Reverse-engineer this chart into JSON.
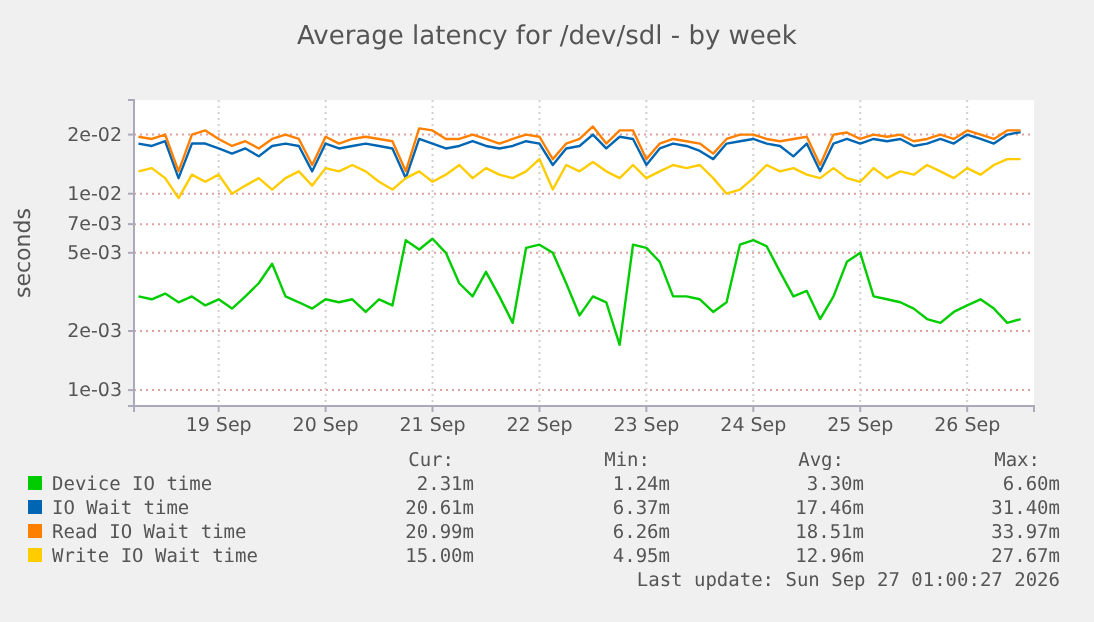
{
  "chart_data": {
    "type": "line",
    "title": "Average latency for /dev/sdl - by week",
    "ylabel": "seconds",
    "log": true,
    "grid": true,
    "legend": "bottom",
    "line_style": "solid",
    "marker": "none",
    "x": [
      "2026-09-18T18:00",
      "2026-09-18T21:00",
      "2026-09-19T00:00",
      "2026-09-19T03:00",
      "2026-09-19T06:00",
      "2026-09-19T09:00",
      "2026-09-19T12:00",
      "2026-09-19T15:00",
      "2026-09-19T18:00",
      "2026-09-19T21:00",
      "2026-09-20T00:00",
      "2026-09-20T03:00",
      "2026-09-20T06:00",
      "2026-09-20T09:00",
      "2026-09-20T12:00",
      "2026-09-20T15:00",
      "2026-09-20T18:00",
      "2026-09-20T21:00",
      "2026-09-21T00:00",
      "2026-09-21T03:00",
      "2026-09-21T06:00",
      "2026-09-21T09:00",
      "2026-09-21T12:00",
      "2026-09-21T15:00",
      "2026-09-21T18:00",
      "2026-09-21T21:00",
      "2026-09-22T00:00",
      "2026-09-22T03:00",
      "2026-09-22T06:00",
      "2026-09-22T09:00",
      "2026-09-22T12:00",
      "2026-09-22T15:00",
      "2026-09-22T18:00",
      "2026-09-22T21:00",
      "2026-09-23T00:00",
      "2026-09-23T03:00",
      "2026-09-23T06:00",
      "2026-09-23T09:00",
      "2026-09-23T12:00",
      "2026-09-23T15:00",
      "2026-09-23T18:00",
      "2026-09-23T21:00",
      "2026-09-24T00:00",
      "2026-09-24T03:00",
      "2026-09-24T06:00",
      "2026-09-24T09:00",
      "2026-09-24T12:00",
      "2026-09-24T15:00",
      "2026-09-24T18:00",
      "2026-09-24T21:00",
      "2026-09-25T00:00",
      "2026-09-25T03:00",
      "2026-09-25T06:00",
      "2026-09-25T09:00",
      "2026-09-25T12:00",
      "2026-09-25T15:00",
      "2026-09-25T18:00",
      "2026-09-25T21:00",
      "2026-09-26T00:00",
      "2026-09-26T03:00",
      "2026-09-26T06:00",
      "2026-09-26T09:00",
      "2026-09-26T12:00",
      "2026-09-26T15:00",
      "2026-09-26T18:00",
      "2026-09-26T21:00",
      "2026-09-27T00:00"
    ],
    "series": [
      {
        "name": "Device IO time",
        "color": "#00cc00",
        "values": [
          0.003,
          0.0029,
          0.0031,
          0.0028,
          0.003,
          0.0027,
          0.0029,
          0.0026,
          0.003,
          0.0035,
          0.0044,
          0.003,
          0.0028,
          0.0026,
          0.0029,
          0.0028,
          0.0029,
          0.0025,
          0.0029,
          0.0027,
          0.0058,
          0.0052,
          0.0059,
          0.005,
          0.0035,
          0.003,
          0.004,
          0.003,
          0.0022,
          0.0053,
          0.0055,
          0.005,
          0.0035,
          0.0024,
          0.003,
          0.0028,
          0.0017,
          0.0055,
          0.0053,
          0.0045,
          0.003,
          0.003,
          0.0029,
          0.0025,
          0.0028,
          0.0055,
          0.0058,
          0.0054,
          0.004,
          0.003,
          0.0032,
          0.0023,
          0.003,
          0.0045,
          0.005,
          0.003,
          0.0029,
          0.0028,
          0.0026,
          0.0023,
          0.0022,
          0.0025,
          0.0027,
          0.0029,
          0.0026,
          0.0022,
          0.0023
        ]
      },
      {
        "name": "IO Wait time",
        "color": "#0066b3",
        "values": [
          0.018,
          0.0175,
          0.0185,
          0.012,
          0.018,
          0.018,
          0.017,
          0.016,
          0.017,
          0.0155,
          0.0175,
          0.018,
          0.0175,
          0.013,
          0.018,
          0.017,
          0.0175,
          0.018,
          0.0175,
          0.017,
          0.012,
          0.019,
          0.018,
          0.017,
          0.0175,
          0.0185,
          0.0175,
          0.017,
          0.0175,
          0.0185,
          0.018,
          0.014,
          0.017,
          0.0175,
          0.02,
          0.017,
          0.0195,
          0.019,
          0.014,
          0.017,
          0.018,
          0.0175,
          0.0165,
          0.015,
          0.018,
          0.0185,
          0.019,
          0.018,
          0.0175,
          0.0155,
          0.018,
          0.013,
          0.018,
          0.019,
          0.018,
          0.019,
          0.0185,
          0.019,
          0.0175,
          0.018,
          0.019,
          0.018,
          0.02,
          0.019,
          0.018,
          0.02,
          0.0206
        ]
      },
      {
        "name": "Read IO Wait time",
        "color": "#ff8000",
        "values": [
          0.0195,
          0.019,
          0.02,
          0.013,
          0.02,
          0.021,
          0.019,
          0.0175,
          0.0185,
          0.017,
          0.019,
          0.02,
          0.019,
          0.014,
          0.0195,
          0.018,
          0.019,
          0.0195,
          0.019,
          0.0185,
          0.013,
          0.0215,
          0.021,
          0.019,
          0.019,
          0.02,
          0.019,
          0.018,
          0.019,
          0.02,
          0.0195,
          0.015,
          0.018,
          0.019,
          0.022,
          0.018,
          0.021,
          0.021,
          0.015,
          0.018,
          0.019,
          0.0185,
          0.018,
          0.016,
          0.019,
          0.02,
          0.02,
          0.019,
          0.0185,
          0.019,
          0.0195,
          0.014,
          0.02,
          0.0205,
          0.019,
          0.02,
          0.0195,
          0.02,
          0.0185,
          0.019,
          0.02,
          0.019,
          0.021,
          0.02,
          0.019,
          0.021,
          0.021
        ]
      },
      {
        "name": "Write IO Wait time",
        "color": "#ffcc00",
        "values": [
          0.013,
          0.0135,
          0.012,
          0.0095,
          0.0125,
          0.0115,
          0.0125,
          0.01,
          0.011,
          0.012,
          0.0105,
          0.012,
          0.013,
          0.011,
          0.0135,
          0.013,
          0.014,
          0.013,
          0.0115,
          0.0105,
          0.012,
          0.013,
          0.0115,
          0.0125,
          0.014,
          0.012,
          0.0135,
          0.0125,
          0.012,
          0.013,
          0.015,
          0.0105,
          0.014,
          0.013,
          0.0145,
          0.013,
          0.012,
          0.014,
          0.012,
          0.013,
          0.014,
          0.0135,
          0.014,
          0.012,
          0.01,
          0.0105,
          0.012,
          0.014,
          0.013,
          0.0135,
          0.0125,
          0.012,
          0.0135,
          0.012,
          0.0115,
          0.0135,
          0.012,
          0.013,
          0.0125,
          0.014,
          0.013,
          0.012,
          0.0135,
          0.0125,
          0.014,
          0.015,
          0.015
        ]
      }
    ],
    "xlim": [
      "2026-09-18T17:00",
      "2026-09-27T03:00"
    ],
    "xticks": [
      {
        "value": "2026-09-19T12:00",
        "label": "19 Sep"
      },
      {
        "value": "2026-09-20T12:00",
        "label": "20 Sep"
      },
      {
        "value": "2026-09-21T12:00",
        "label": "21 Sep"
      },
      {
        "value": "2026-09-22T12:00",
        "label": "22 Sep"
      },
      {
        "value": "2026-09-23T12:00",
        "label": "23 Sep"
      },
      {
        "value": "2026-09-24T12:00",
        "label": "24 Sep"
      },
      {
        "value": "2026-09-25T12:00",
        "label": "25 Sep"
      },
      {
        "value": "2026-09-26T12:00",
        "label": "26 Sep"
      }
    ],
    "ylim": [
      0.00083,
      0.03
    ],
    "yticks": [
      {
        "value": 0.001,
        "label": "1e-03"
      },
      {
        "value": 0.002,
        "label": "2e-03"
      },
      {
        "value": 0.005,
        "label": "5e-03"
      },
      {
        "value": 0.007,
        "label": "7e-03"
      },
      {
        "value": 0.01,
        "label": "1e-02"
      },
      {
        "value": 0.02,
        "label": "2e-02"
      }
    ],
    "annotations": [
      "Cur:",
      "Min:",
      "Avg:",
      "Max:",
      "2.31m",
      "1.24m",
      "3.30m",
      "6.60m",
      "20.61m",
      "6.37m",
      "17.46m",
      "31.40m",
      "20.99m",
      "6.26m",
      "18.51m",
      "33.97m",
      "15.00m",
      "4.95m",
      "12.96m",
      "27.67m",
      "Last update: Sun Sep 27 01:00:27 2026"
    ]
  }
}
